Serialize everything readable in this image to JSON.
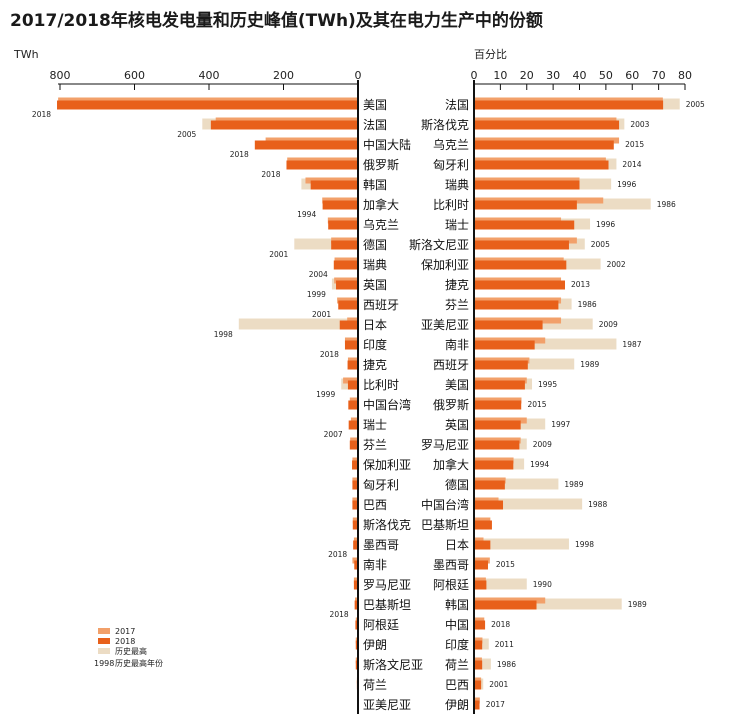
{
  "title": "2017/2018年核电发电量和历史峰值(TWh)及其在电力生产中的份额",
  "colors": {
    "v2017": "#f2a06a",
    "v2018": "#e8601a",
    "peak": "#ecdcc4",
    "axis": "#111111"
  },
  "legend": [
    {
      "key": "v2017",
      "label": "2017"
    },
    {
      "key": "v2018",
      "label": "2018"
    },
    {
      "key": "peak",
      "label": "历史最高"
    },
    {
      "key": "peakyear",
      "label": "历史最高年份",
      "sample": "1998"
    }
  ],
  "chart_data": [
    {
      "type": "bar",
      "panel": "left",
      "ylabel": "TWh",
      "xlim": [
        0,
        800
      ],
      "xticks": [
        800,
        600,
        400,
        200,
        0
      ],
      "categories": [
        "美国",
        "法国",
        "中国大陆",
        "俄罗斯",
        "韩国",
        "加拿大",
        "乌克兰",
        "德国",
        "瑞典",
        "英国",
        "西班牙",
        "日本",
        "印度",
        "捷克",
        "比利时",
        "中国台湾",
        "瑞士",
        "芬兰",
        "保加利亚",
        "匈牙利",
        "巴西",
        "斯洛伐克",
        "墨西哥",
        "南非",
        "罗马尼亚",
        "巴基斯坦",
        "阿根廷",
        "伊朗",
        "斯洛文尼亚",
        "荷兰",
        "亚美尼亚"
      ],
      "series": [
        {
          "name": "2017",
          "values": [
            805,
            382,
            248,
            190,
            141,
            96,
            81,
            72,
            63,
            64,
            56,
            29,
            35,
            27,
            40,
            22,
            19,
            21,
            15,
            15,
            15,
            14,
            11,
            15,
            11,
            8,
            6,
            6,
            6,
            3,
            2
          ]
        },
        {
          "name": "2018",
          "values": [
            808,
            395,
            277,
            192,
            127,
            95,
            80,
            72,
            65,
            59,
            53,
            49,
            35,
            28,
            27,
            26,
            25,
            22,
            16,
            15,
            15,
            14,
            13,
            10,
            11,
            9,
            7,
            6,
            6,
            3,
            2
          ]
        },
        {
          "name": "历史最高",
          "values": [
            null,
            418,
            null,
            null,
            152,
            null,
            null,
            171,
            null,
            70,
            null,
            320,
            null,
            null,
            45,
            null,
            null,
            null,
            null,
            null,
            null,
            null,
            null,
            null,
            null,
            null,
            null,
            null,
            null,
            null,
            null
          ]
        }
      ],
      "peak_year_labels": [
        "2018",
        "2005",
        "2018",
        "2018",
        "",
        "1994",
        "",
        "2001",
        "2004",
        "1999",
        "2001",
        "1998",
        "2018",
        "",
        "1999",
        "",
        "2007",
        "",
        "",
        "",
        "",
        "",
        "2018",
        "",
        "",
        "2018",
        "",
        "",
        "",
        "",
        ""
      ]
    },
    {
      "type": "bar",
      "panel": "right",
      "ylabel": "百分比",
      "xlim": [
        0,
        80
      ],
      "xticks": [
        0,
        10,
        20,
        30,
        40,
        50,
        60,
        70,
        80
      ],
      "categories": [
        "法国",
        "斯洛伐克",
        "乌克兰",
        "匈牙利",
        "瑞典",
        "比利时",
        "瑞士",
        "斯洛文尼亚",
        "保加利亚",
        "捷克",
        "芬兰",
        "亚美尼亚",
        "南非",
        "西班牙",
        "美国",
        "俄罗斯",
        "英国",
        "罗马尼亚",
        "加拿大",
        "德国",
        "中国台湾",
        "巴基斯坦",
        "日本",
        "墨西哥",
        "阿根廷",
        "韩国",
        "中国",
        "印度",
        "荷兰",
        "巴西",
        "伊朗"
      ],
      "series": [
        {
          "name": "2017",
          "values": [
            71.6,
            54,
            55,
            50,
            40,
            49,
            33,
            39,
            34,
            33,
            33,
            33,
            27,
            21,
            20,
            18,
            20,
            17.7,
            15,
            12,
            9.3,
            6.2,
            3.6,
            6,
            4.5,
            27,
            3.9,
            3.2,
            3,
            2.7,
            2.2
          ]
        },
        {
          "name": "2018",
          "values": [
            71.7,
            55,
            53,
            51,
            40,
            39,
            38,
            36,
            35,
            34.5,
            32,
            26,
            23,
            20.4,
            19.3,
            17.9,
            17.7,
            17.2,
            14.9,
            11.7,
            11,
            6.8,
            6.2,
            5.3,
            4.7,
            23.7,
            4.2,
            3.1,
            3.1,
            2.7,
            2.1
          ]
        },
        {
          "name": "历史最高",
          "values": [
            78,
            57,
            null,
            54,
            52,
            67,
            44,
            42,
            48,
            null,
            37,
            45,
            54,
            38,
            22,
            null,
            27,
            20,
            19,
            32,
            41,
            null,
            36,
            null,
            20,
            56,
            null,
            5.6,
            6.4,
            3.5,
            2.1
          ]
        }
      ],
      "peak_year_labels": [
        "2005",
        "2003",
        "2015",
        "2014",
        "1996",
        "1986",
        "1996",
        "2005",
        "2002",
        "2013",
        "1986",
        "2009",
        "1987",
        "1989",
        "1995",
        "2015",
        "1997",
        "2009",
        "1994",
        "1989",
        "1988",
        "",
        "1998",
        "2015",
        "1990",
        "1989",
        "2018",
        "2011",
        "1986",
        "2001",
        "2017"
      ]
    }
  ]
}
